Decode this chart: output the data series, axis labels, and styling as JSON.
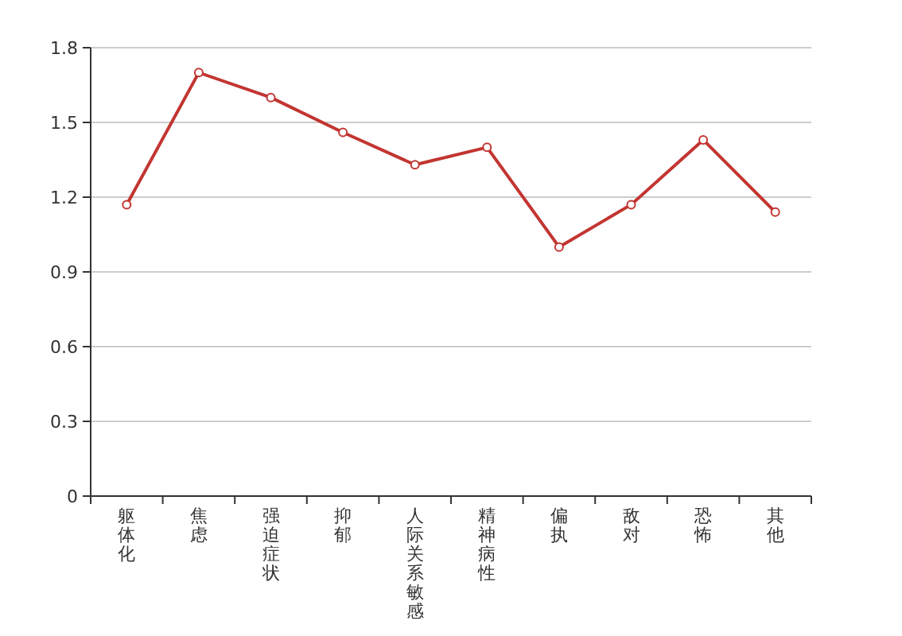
{
  "chart_data": {
    "type": "line",
    "categories": [
      "躯体化",
      "焦虑",
      "强迫症状",
      "抑郁",
      "人际关系敏感",
      "精神病性",
      "偏执",
      "敌对",
      "恐怖",
      "其他"
    ],
    "series": [
      {
        "color": "#c23531",
        "values": [
          1.17,
          1.7,
          1.6,
          1.46,
          1.33,
          1.4,
          1.0,
          1.17,
          1.43,
          1.14
        ]
      }
    ],
    "ylim": [
      0,
      1.8
    ],
    "yticks": [
      0,
      0.3,
      0.6,
      0.9,
      1.2,
      1.5,
      1.8
    ],
    "grid": "y",
    "marker": "circle",
    "line_style": "solid"
  }
}
